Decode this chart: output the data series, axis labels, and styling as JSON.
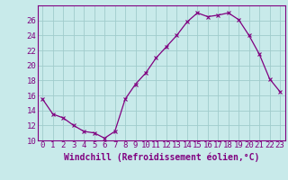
{
  "x": [
    0,
    1,
    2,
    3,
    4,
    5,
    6,
    7,
    8,
    9,
    10,
    11,
    12,
    13,
    14,
    15,
    16,
    17,
    18,
    19,
    20,
    21,
    22,
    23
  ],
  "y": [
    15.5,
    13.5,
    13.0,
    12.0,
    11.2,
    11.0,
    10.3,
    11.2,
    15.5,
    17.5,
    19.0,
    21.0,
    22.5,
    24.0,
    25.8,
    27.0,
    26.5,
    26.7,
    27.0,
    26.1,
    24.0,
    21.5,
    18.2,
    16.5
  ],
  "line_color": "#800080",
  "marker": "x",
  "background_color": "#c8eaea",
  "grid_color": "#a0cccc",
  "xlabel": "Windchill (Refroidissement éolien,°C)",
  "ylim": [
    10,
    28
  ],
  "xlim": [
    -0.5,
    23.5
  ],
  "yticks": [
    10,
    12,
    14,
    16,
    18,
    20,
    22,
    24,
    26
  ],
  "xtick_labels": [
    "0",
    "1",
    "2",
    "3",
    "4",
    "5",
    "6",
    "7",
    "8",
    "9",
    "10",
    "11",
    "12",
    "13",
    "14",
    "15",
    "16",
    "17",
    "18",
    "19",
    "20",
    "21",
    "22",
    "23"
  ],
  "tick_color": "#800080",
  "font_color": "#800080",
  "font_size": 6.5,
  "xlabel_fontsize": 7,
  "marker_size": 3,
  "line_width": 0.9
}
